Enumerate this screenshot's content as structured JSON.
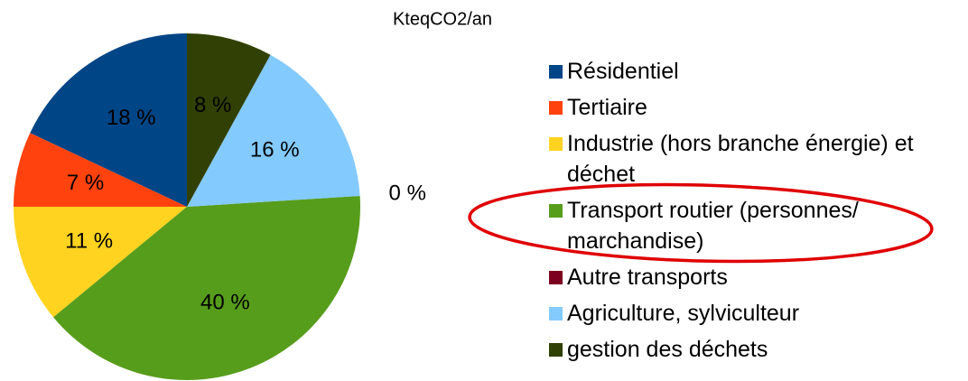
{
  "chart_data": {
    "type": "pie",
    "title": "KteqCO2/an",
    "categories": [
      "Résidentiel",
      "Tertiaire",
      "Industrie (hors branche énergie) et déchet",
      "Transport routier (personnes/ marchandise)",
      "Autre transports",
      "Agriculture, sylviculteur",
      "gestion des déchets"
    ],
    "values": [
      18,
      7,
      11,
      40,
      0,
      16,
      8
    ],
    "value_labels": [
      "18 %",
      "7 %",
      "11 %",
      "40 %",
      "0 %",
      "16 %",
      "8 %"
    ],
    "colors": [
      "#004586",
      "#ff420e",
      "#ffd320",
      "#579d1c",
      "#7e0021",
      "#83caff",
      "#314004"
    ]
  }
}
